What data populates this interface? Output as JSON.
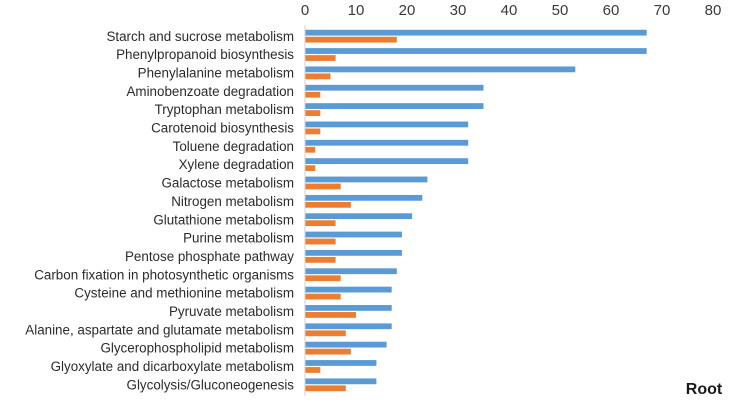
{
  "chart_data": {
    "type": "bar",
    "orientation": "horizontal",
    "panel_label": "Root",
    "title": "",
    "xlabel": "",
    "ylabel": "",
    "xlim": [
      0,
      80
    ],
    "x_ticks": [
      0,
      10,
      20,
      30,
      40,
      50,
      60,
      70,
      80
    ],
    "x_axis_position": "top",
    "grid": false,
    "legend": "none",
    "categories": [
      "Starch and sucrose metabolism",
      "Phenylpropanoid biosynthesis",
      "Phenylalanine metabolism",
      "Aminobenzoate degradation",
      "Tryptophan metabolism",
      "Carotenoid biosynthesis",
      "Toluene degradation",
      "Xylene degradation",
      "Galactose metabolism",
      "Nitrogen metabolism",
      "Glutathione metabolism",
      "Purine metabolism",
      "Pentose phosphate pathway",
      "Carbon fixation in photosynthetic organisms",
      "Cysteine and methionine metabolism",
      "Pyruvate metabolism",
      "Alanine, aspartate and glutamate metabolism",
      "Glycerophospholipid metabolism",
      "Glyoxylate and dicarboxylate metabolism",
      "Glycolysis/Gluconeogenesis"
    ],
    "series": [
      {
        "color": "#5b9bd5",
        "values": [
          67,
          67,
          53,
          35,
          35,
          32,
          32,
          32,
          24,
          23,
          21,
          19,
          19,
          18,
          17,
          17,
          17,
          16,
          14,
          14
        ]
      },
      {
        "color": "#ed7d31",
        "values": [
          18,
          6,
          5,
          3,
          3,
          3,
          2,
          2,
          7,
          9,
          6,
          6,
          6,
          7,
          7,
          10,
          8,
          9,
          3,
          8
        ]
      }
    ]
  }
}
